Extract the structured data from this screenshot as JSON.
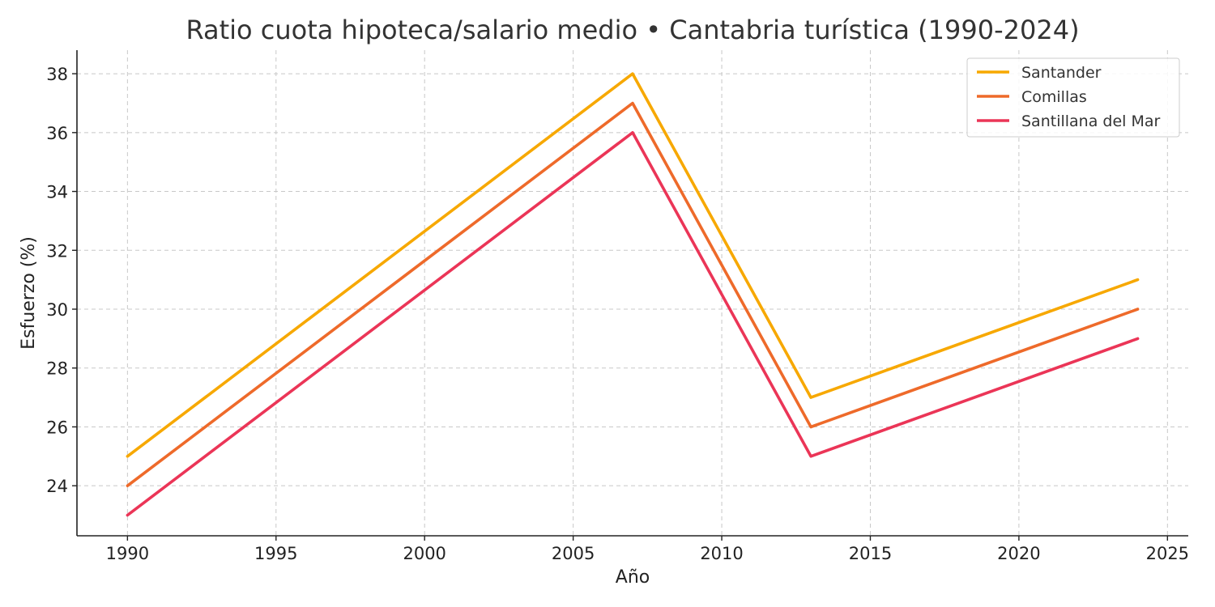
{
  "chart_data": {
    "type": "line",
    "title": "Ratio cuota hipoteca/salario medio • Cantabria turística (1990-2024)",
    "xlabel": "Año",
    "ylabel": "Esfuerzo (%)",
    "x": [
      1990,
      2007,
      2013,
      2024
    ],
    "xlim": [
      1988.3,
      2025.7
    ],
    "ylim": [
      22.3,
      38.8
    ],
    "xticks": [
      1990,
      1995,
      2000,
      2005,
      2010,
      2015,
      2020,
      2025
    ],
    "yticks": [
      24,
      26,
      28,
      30,
      32,
      34,
      36,
      38
    ],
    "grid": true,
    "legend_position": "top-right",
    "series": [
      {
        "name": "Santander",
        "color": "#F7A800",
        "values": [
          25,
          38,
          27,
          31
        ]
      },
      {
        "name": "Comillas",
        "color": "#EE6A2A",
        "values": [
          24,
          37,
          26,
          30
        ]
      },
      {
        "name": "Santillana del Mar",
        "color": "#EB3557",
        "values": [
          23,
          36,
          25,
          29
        ]
      }
    ]
  }
}
